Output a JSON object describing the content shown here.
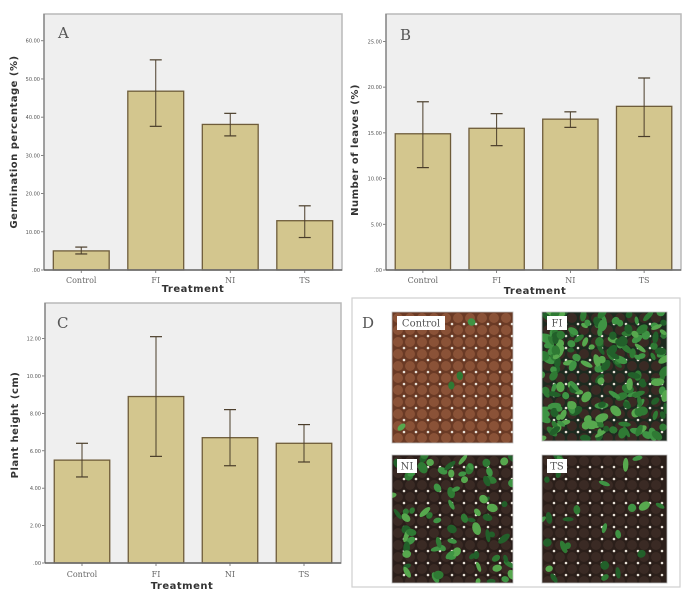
{
  "colors": {
    "bar_fill": "#d3c68e",
    "bar_stroke": "#6e5c3a",
    "plot_bg": "#efefef",
    "frame": "#9a9a9a",
    "error_bar": "#4a3d2a"
  },
  "chart_data": [
    {
      "panel": "A",
      "type": "bar",
      "categories": [
        "Control",
        "FI",
        "NI",
        "TS"
      ],
      "values": [
        5.0,
        46.8,
        38.1,
        12.9
      ],
      "error_low": [
        4.2,
        37.6,
        35.1,
        8.5
      ],
      "error_high": [
        6.0,
        55.0,
        41.0,
        16.8
      ],
      "xlabel": "Treatment",
      "ylabel": "Germination percentage (%)",
      "ylim": [
        0,
        67
      ],
      "yticks": [
        0,
        10,
        20,
        30,
        40,
        50,
        60
      ],
      "ytick_labels": [
        ".00",
        "10.00",
        "20.00",
        "30.00",
        "40.00",
        "50.00",
        "60.00"
      ],
      "grid": false
    },
    {
      "panel": "B",
      "type": "bar",
      "categories": [
        "Control",
        "FI",
        "NI",
        "TS"
      ],
      "values": [
        14.9,
        15.5,
        16.5,
        17.9
      ],
      "error_low": [
        11.2,
        13.6,
        15.6,
        14.6
      ],
      "error_high": [
        18.4,
        17.1,
        17.3,
        21.0
      ],
      "xlabel": "Treatment",
      "ylabel": "Number of leaves (%)",
      "ylim": [
        0,
        28
      ],
      "yticks": [
        0,
        5,
        10,
        15,
        20,
        25
      ],
      "ytick_labels": [
        ".00",
        "5.00",
        "10.00",
        "15.00",
        "20.00",
        "25.00"
      ],
      "grid": false
    },
    {
      "panel": "C",
      "type": "bar",
      "categories": [
        "Control",
        "FI",
        "NI",
        "TS"
      ],
      "values": [
        5.5,
        8.9,
        6.7,
        6.4
      ],
      "error_low": [
        4.6,
        5.7,
        5.2,
        5.4
      ],
      "error_high": [
        6.4,
        12.1,
        8.2,
        7.4
      ],
      "xlabel": "Treatment",
      "ylabel": "Plant height (cm)",
      "ylim": [
        0,
        13.9
      ],
      "yticks": [
        0,
        2,
        4,
        6,
        8,
        10,
        12
      ],
      "ytick_labels": [
        ".00",
        "2.00",
        "4.00",
        "6.00",
        "8.00",
        "10.00",
        "12.00"
      ],
      "grid": false
    }
  ],
  "photo_panel": {
    "panel": "D",
    "photos": [
      {
        "label": "Control",
        "scene": "soil"
      },
      {
        "label": "FI",
        "scene": "dense-green"
      },
      {
        "label": "NI",
        "scene": "mixed"
      },
      {
        "label": "TS",
        "scene": "sparse"
      }
    ]
  }
}
